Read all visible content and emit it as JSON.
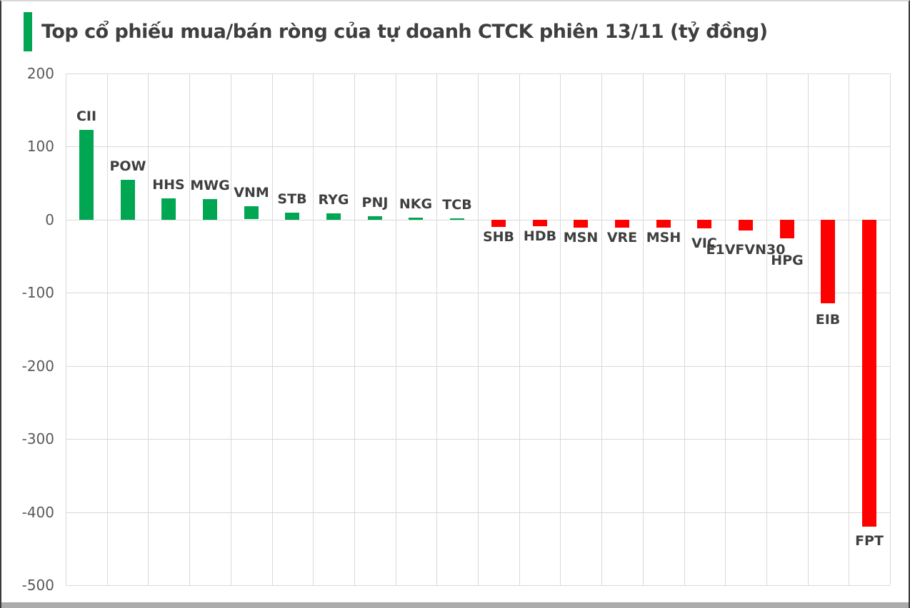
{
  "window": {
    "title": "Top cổ phiếu mua/bán ròng của tự doanh CTCK phiên 13/11 (tỷ đồng)"
  },
  "chart_data": {
    "type": "bar",
    "title": "Top cổ phiếu mua/bán ròng của tự doanh CTCK phiên 13/11 (tỷ đồng)",
    "unit": "tỷ đồng",
    "categories": [
      "CII",
      "POW",
      "HHS",
      "MWG",
      "VNM",
      "STB",
      "RYG",
      "PNJ",
      "NKG",
      "TCB",
      "SHB",
      "HDB",
      "MSN",
      "VRE",
      "MSH",
      "VIC",
      "E1VFVN30",
      "HPG",
      "EIB",
      "FPT"
    ],
    "values": [
      123,
      55,
      29,
      28,
      18,
      10,
      9,
      5,
      3,
      2,
      -10,
      -9,
      -11,
      -11,
      -11,
      -12,
      -15,
      -25,
      -114,
      -420
    ],
    "xlabel": "",
    "ylabel": "",
    "ylim": [
      -500,
      200
    ],
    "yticks": [
      200,
      100,
      0,
      -100,
      -200,
      -300,
      -400,
      -500
    ],
    "grid": true,
    "legend": false,
    "label_placement": "at-bar-ends",
    "colors": {
      "positive": "#00A651",
      "negative": "#FE0000",
      "accent": "#00A651",
      "gridline": "#D9D9D9",
      "tick_text": "#595959",
      "label_text": "#3F3F3F"
    }
  }
}
